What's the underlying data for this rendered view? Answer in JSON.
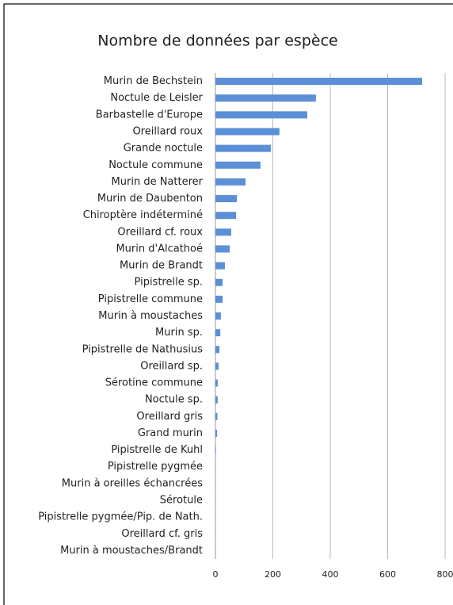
{
  "chart_data": {
    "type": "barh",
    "title": "Nombre de données par espèce",
    "categories": [
      "Murin de Bechstein",
      "Noctule de Leisler",
      "Barbastelle d'Europe",
      "Oreillard roux",
      "Grande noctule",
      "Noctule commune",
      "Murin de Natterer",
      "Murin de Daubenton",
      "Chiroptère indéterminé",
      "Oreillard cf. roux",
      "Murin d'Alcathoé",
      "Murin de Brandt",
      "Pipistrelle sp.",
      "Pipistrelle commune",
      "Murin à moustaches",
      "Murin sp.",
      "Pipistrelle de Nathusius",
      "Oreillard sp.",
      "Sérotine commune",
      "Noctule sp.",
      "Oreillard gris",
      "Grand murin",
      "Pipistrelle de Kuhl",
      "Pipistrelle pygmée",
      "Murin à oreilles échancrées",
      "Sérotule",
      "Pipistrelle pygmée/Pip. de Nath.",
      "Oreillard cf. gris",
      "Murin à moustaches/Brandt"
    ],
    "values": [
      720,
      350,
      320,
      223,
      193,
      157,
      105,
      75,
      72,
      55,
      50,
      33,
      25,
      25,
      19,
      17,
      14,
      11,
      8,
      8,
      7,
      6,
      2,
      1,
      1,
      1,
      1,
      1,
      1
    ],
    "color": "#5b8fd6",
    "xlim": [
      0,
      800
    ],
    "xticks": [
      0,
      200,
      400,
      600,
      800
    ],
    "grid": true
  }
}
